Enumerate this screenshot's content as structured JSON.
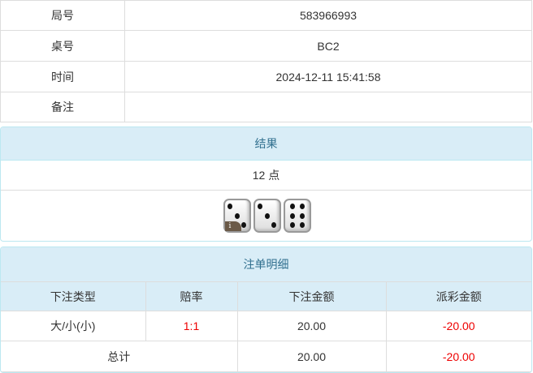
{
  "info": [
    {
      "label": "局号",
      "value": "583966993"
    },
    {
      "label": "桌号",
      "value": "BC2"
    },
    {
      "label": "时间",
      "value": "2024-12-11 15:41:58"
    },
    {
      "label": "备注",
      "value": ""
    }
  ],
  "result": {
    "title": "结果",
    "points": "12 点",
    "dice": [
      3,
      3,
      6
    ],
    "info_icon": "i"
  },
  "bets": {
    "title": "注单明细",
    "headers": [
      "下注类型",
      "赔率",
      "下注金额",
      "派彩金额"
    ],
    "rows": [
      {
        "type": "大/小(小)",
        "odds": "1:1",
        "amount": "20.00",
        "payout": "-20.00"
      }
    ],
    "total": {
      "label": "总计",
      "amount": "20.00",
      "payout": "-20.00"
    }
  },
  "colors": {
    "header_bg": "#d9edf7",
    "header_text": "#31708f",
    "negative": "#ee0000"
  }
}
